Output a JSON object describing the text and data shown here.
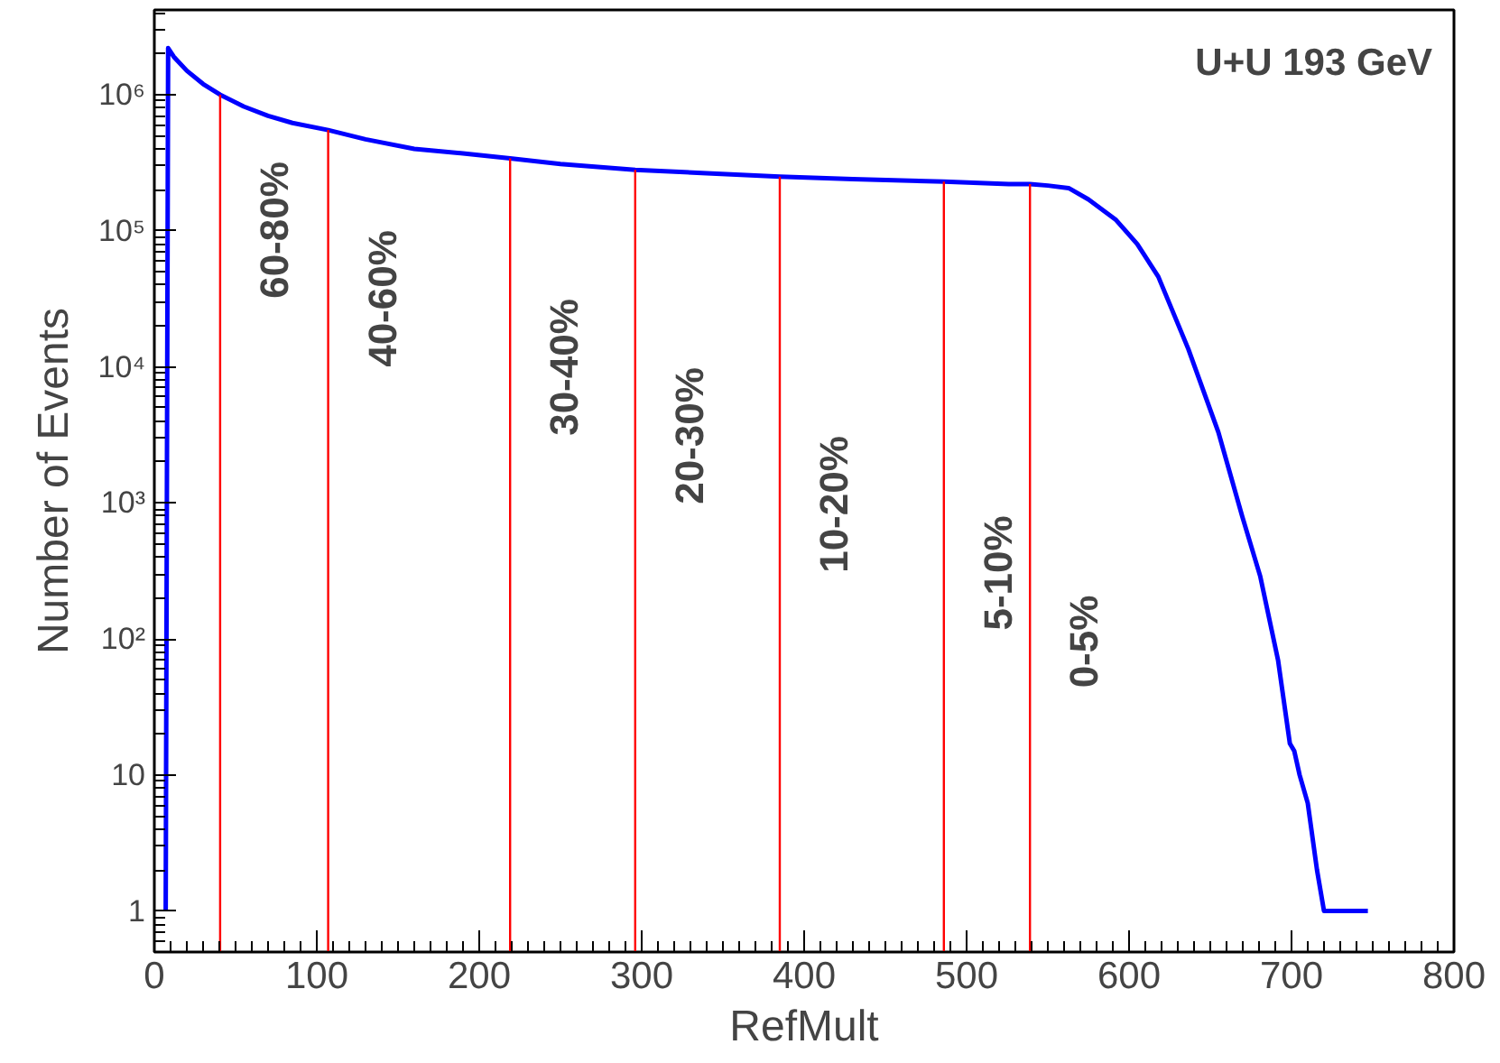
{
  "chart_data": {
    "type": "line",
    "xlabel": "RefMult",
    "ylabel": "Number of Events",
    "x": [
      7,
      8.5,
      12,
      20,
      30,
      40.5,
      55,
      70,
      85,
      107,
      130,
      160,
      190,
      219,
      250,
      296,
      340,
      385,
      430,
      486,
      526,
      539,
      550,
      562.8,
      575,
      592,
      605,
      618,
      636.5,
      655,
      669.6,
      680.7,
      691.7,
      699,
      701.7,
      705,
      710,
      715.7,
      720,
      725,
      730,
      737,
      742,
      747
    ],
    "series": [
      {
        "color": "#0000ff",
        "values": [
          1,
          2200000,
          1900000,
          1500000,
          1200000,
          1000000,
          820000,
          700000,
          620000,
          550000,
          470000,
          400000,
          370000,
          340000,
          310000,
          280000,
          265000,
          250000,
          240000,
          230000,
          220000,
          220000,
          215000,
          206000,
          170000,
          120000,
          80000,
          46000,
          13500,
          3300,
          800,
          290,
          70,
          17,
          15,
          10,
          6.2,
          2,
          1,
          1,
          1,
          1,
          1,
          1
        ]
      }
    ],
    "log": "y",
    "xlim": [
      0,
      800
    ],
    "ylim": [
      0.5,
      4200000
    ],
    "xticks": [
      0,
      100,
      200,
      300,
      400,
      500,
      600,
      700,
      800
    ],
    "yticks": [
      1,
      10,
      {
        "value": 100,
        "label": "10²"
      },
      {
        "value": 1000,
        "label": "10³"
      },
      {
        "value": 10000,
        "label": "10⁴"
      },
      {
        "value": 100000,
        "label": "10⁵"
      },
      {
        "value": 1000000,
        "label": "10⁶"
      }
    ],
    "grid": false,
    "line_style": "solid",
    "ref_lines": [
      {
        "axis": "x",
        "value": 40.5,
        "color": "#ff0000"
      },
      {
        "axis": "x",
        "value": 107,
        "color": "#ff0000"
      },
      {
        "axis": "x",
        "value": 219,
        "color": "#ff0000"
      },
      {
        "axis": "x",
        "value": 296,
        "color": "#ff0000"
      },
      {
        "axis": "x",
        "value": 385,
        "color": "#ff0000"
      },
      {
        "axis": "x",
        "value": 486,
        "color": "#ff0000"
      },
      {
        "axis": "x",
        "value": 539,
        "color": "#ff0000"
      }
    ],
    "annotations": [
      "U+U 193 GeV",
      "60-80%",
      "40-60%",
      "30-40%",
      "20-30%",
      "10-20%",
      "5-10%",
      "0-5%"
    ]
  }
}
